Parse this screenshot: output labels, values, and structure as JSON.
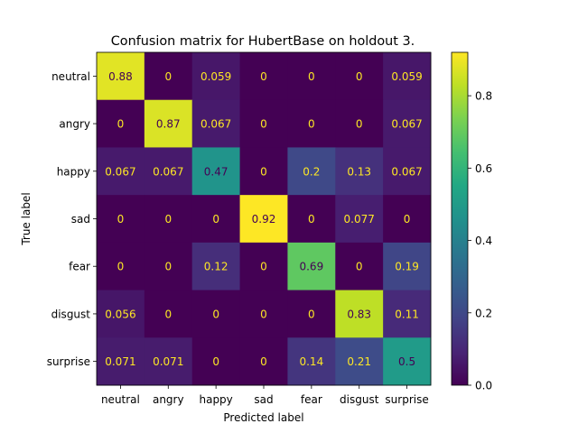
{
  "chart_data": {
    "type": "heatmap",
    "title": "Confusion matrix for HubertBase on holdout 3.",
    "xlabel": "Predicted label",
    "ylabel": "True label",
    "x_categories": [
      "neutral",
      "angry",
      "happy",
      "sad",
      "fear",
      "disgust",
      "surprise"
    ],
    "y_categories": [
      "neutral",
      "angry",
      "happy",
      "sad",
      "fear",
      "disgust",
      "surprise"
    ],
    "values": [
      [
        0.88,
        0,
        0.059,
        0,
        0,
        0,
        0.059
      ],
      [
        0,
        0.87,
        0.067,
        0,
        0,
        0,
        0.067
      ],
      [
        0.067,
        0.067,
        0.47,
        0,
        0.2,
        0.13,
        0.067
      ],
      [
        0,
        0,
        0,
        0.92,
        0,
        0.077,
        0
      ],
      [
        0,
        0,
        0.12,
        0,
        0.69,
        0,
        0.19
      ],
      [
        0.056,
        0,
        0,
        0,
        0,
        0.83,
        0.11
      ],
      [
        0.071,
        0.071,
        0,
        0,
        0.14,
        0.21,
        0.5
      ]
    ],
    "labels": [
      [
        "0.88",
        "0",
        "0.059",
        "0",
        "0",
        "0",
        "0.059"
      ],
      [
        "0",
        "0.87",
        "0.067",
        "0",
        "0",
        "0",
        "0.067"
      ],
      [
        "0.067",
        "0.067",
        "0.47",
        "0",
        "0.2",
        "0.13",
        "0.067"
      ],
      [
        "0",
        "0",
        "0",
        "0.92",
        "0",
        "0.077",
        "0"
      ],
      [
        "0",
        "0",
        "0.12",
        "0",
        "0.69",
        "0",
        "0.19"
      ],
      [
        "0.056",
        "0",
        "0",
        "0",
        "0",
        "0.83",
        "0.11"
      ],
      [
        "0.071",
        "0.071",
        "0",
        "0",
        "0.14",
        "0.21",
        "0.5"
      ]
    ],
    "colormap": "viridis",
    "vmin": 0,
    "vmax": 0.92,
    "colorbar_ticks": [
      0.0,
      0.2,
      0.4,
      0.6,
      0.8
    ],
    "colorbar_tick_labels": [
      "0.0",
      "0.2",
      "0.4",
      "0.6",
      "0.8"
    ],
    "text_color_dark": "#440154",
    "text_color_light": "#fde725"
  }
}
